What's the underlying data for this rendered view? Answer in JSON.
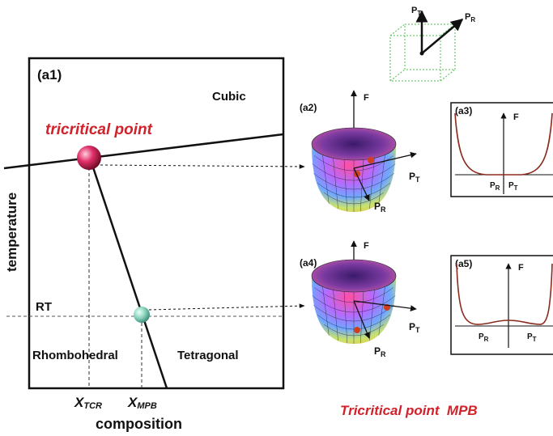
{
  "colors": {
    "accent_red": "#d0222a",
    "cube_green": "#4fbf4f",
    "curve_brown": "#8b2b1e",
    "ink": "#111111"
  },
  "cube_diagram": {
    "p_t": "P",
    "p_t_sub": "T",
    "p_r": "P",
    "p_r_sub": "R"
  },
  "phase_diagram": {
    "panel_label": "(a1)",
    "cubic_label": "Cubic",
    "tricritical_label": "tricritical point",
    "rt_label": "RT",
    "rhombohedral_label": "Rhombohedral",
    "tetragonal_label": "Tetragonal",
    "y_axis_label": "temperature",
    "x_axis_label": "composition",
    "x_tcr": "X",
    "x_tcr_sub": "TCR",
    "x_mpb": "X",
    "x_mpb_sub": "MPB"
  },
  "energy_3d_top": {
    "panel_label": "(a2)",
    "f_label": "F",
    "pt": "P",
    "pt_sub": "T",
    "pr": "P",
    "pr_sub": "R"
  },
  "energy_2d_top": {
    "panel_label": "(a3)",
    "f_label": "F",
    "pr": "P",
    "pr_sub": "R",
    "pt": "P",
    "pt_sub": "T"
  },
  "energy_3d_bottom": {
    "panel_label": "(a4)",
    "f_label": "F",
    "pt": "P",
    "pt_sub": "T",
    "pr": "P",
    "pr_sub": "R"
  },
  "energy_2d_bottom": {
    "panel_label": "(a5)",
    "f_label": "F",
    "pr": "P",
    "pr_sub": "R",
    "pt": "P",
    "pt_sub": "T"
  },
  "caption": "Tricritical point  MPB"
}
